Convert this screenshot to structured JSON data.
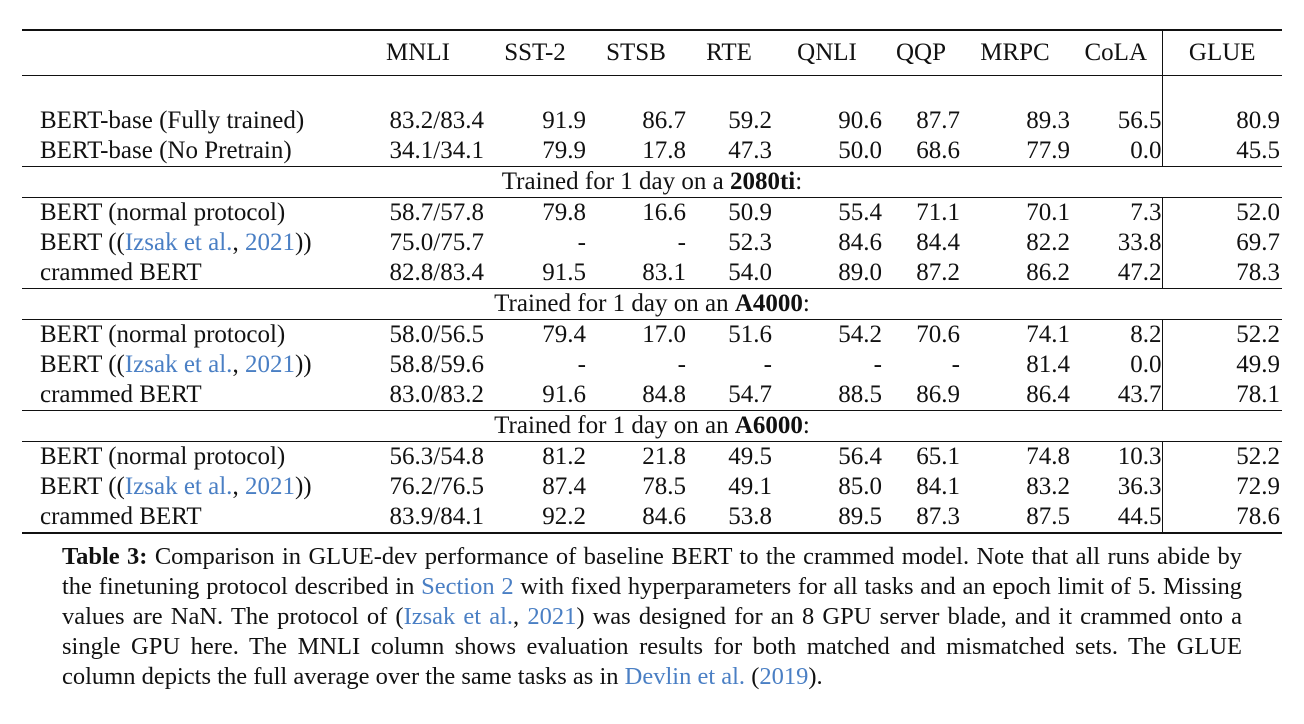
{
  "table": {
    "columns": [
      "MNLI",
      "SST-2",
      "STSB",
      "RTE",
      "QNLI",
      "QQP",
      "MRPC",
      "CoLA",
      "GLUE"
    ],
    "baseline_rows": [
      {
        "model": "BERT-base (Fully trained)",
        "values": [
          "83.2/83.4",
          "91.9",
          "86.7",
          "59.2",
          "90.6",
          "87.7",
          "89.3",
          "56.5"
        ],
        "glue": "80.9"
      },
      {
        "model": "BERT-base (No Pretrain)",
        "values": [
          "34.1/34.1",
          "79.9",
          "17.8",
          "47.3",
          "50.0",
          "68.6",
          "77.9",
          "0.0"
        ],
        "glue": "45.5"
      }
    ],
    "sections": [
      {
        "title_prefix": "Trained for 1 day on a ",
        "title_bold": "2080ti",
        "title_suffix": ":",
        "rows": [
          {
            "model": "BERT (normal protocol)",
            "values": [
              "58.7/57.8",
              "79.8",
              "16.6",
              "50.9",
              "55.4",
              "71.1",
              "70.1",
              "7.3"
            ],
            "glue": "52.0"
          },
          {
            "model_prefix": "BERT ((",
            "cite_author": "Izsak et al.",
            "cite_sep": ", ",
            "cite_year": "2021",
            "model_suffix": "))",
            "values": [
              "75.0/75.7",
              "-",
              "-",
              "52.3",
              "84.6",
              "84.4",
              "82.2",
              "33.8"
            ],
            "glue": "69.7"
          },
          {
            "model": "crammed BERT",
            "values": [
              "82.8/83.4",
              "91.5",
              "83.1",
              "54.0",
              "89.0",
              "87.2",
              "86.2",
              "47.2"
            ],
            "glue": "78.3"
          }
        ]
      },
      {
        "title_prefix": "Trained for 1 day on an ",
        "title_bold": "A4000",
        "title_suffix": ":",
        "rows": [
          {
            "model": "BERT (normal protocol)",
            "values": [
              "58.0/56.5",
              "79.4",
              "17.0",
              "51.6",
              "54.2",
              "70.6",
              "74.1",
              "8.2"
            ],
            "glue": "52.2"
          },
          {
            "model_prefix": "BERT ((",
            "cite_author": "Izsak et al.",
            "cite_sep": ", ",
            "cite_year": "2021",
            "model_suffix": "))",
            "values": [
              "58.8/59.6",
              "-",
              "-",
              "-",
              "-",
              "-",
              "81.4",
              "0.0"
            ],
            "glue": "49.9"
          },
          {
            "model": "crammed BERT",
            "values": [
              "83.0/83.2",
              "91.6",
              "84.8",
              "54.7",
              "88.5",
              "86.9",
              "86.4",
              "43.7"
            ],
            "glue": "78.1"
          }
        ]
      },
      {
        "title_prefix": "Trained for 1 day on an ",
        "title_bold": "A6000",
        "title_suffix": ":",
        "rows": [
          {
            "model": "BERT (normal protocol)",
            "values": [
              "56.3/54.8",
              "81.2",
              "21.8",
              "49.5",
              "56.4",
              "65.1",
              "74.8",
              "10.3"
            ],
            "glue": "52.2"
          },
          {
            "model_prefix": "BERT ((",
            "cite_author": "Izsak et al.",
            "cite_sep": ", ",
            "cite_year": "2021",
            "model_suffix": "))",
            "values": [
              "76.2/76.5",
              "87.4",
              "78.5",
              "49.1",
              "85.0",
              "84.1",
              "83.2",
              "36.3"
            ],
            "glue": "72.9"
          },
          {
            "model": "crammed BERT",
            "values": [
              "83.9/84.1",
              "92.2",
              "84.6",
              "53.8",
              "89.5",
              "87.3",
              "87.5",
              "44.5"
            ],
            "glue": "78.6"
          }
        ]
      }
    ]
  },
  "caption": {
    "label": "Table 3:",
    "t1": " Comparison in GLUE-dev performance of baseline BERT to the crammed model. Note that all runs abide by the finetuning protocol described in ",
    "link_section": "Section 2",
    "t2": " with fixed hyperparameters for all tasks and an epoch limit of 5.  Missing values are NaN. The protocol of (",
    "cite1_author": "Izsak et al.",
    "cite1_sep": ", ",
    "cite1_year": "2021",
    "t3": ") was designed for an 8 GPU server blade, and it crammed onto a single GPU here. The MNLI column shows evaluation results for both matched and mismatched sets. The GLUE column depicts the full average over the same tasks as in ",
    "cite2_author": "Devlin et al.",
    "cite2_open": " (",
    "cite2_year": "2019",
    "t4": ")."
  }
}
